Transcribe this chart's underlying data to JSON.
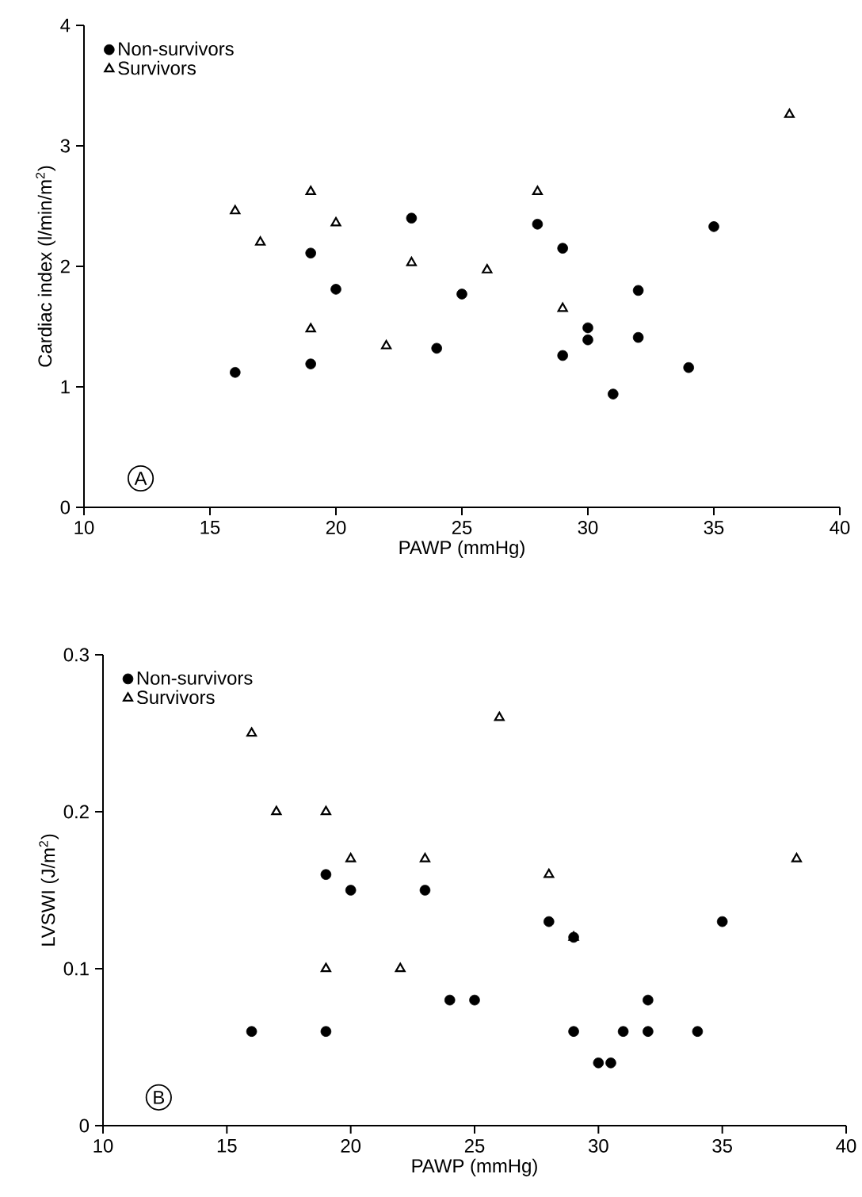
{
  "chart_data": [
    {
      "type": "scatter",
      "xlabel": "PAWP (mmHg)",
      "ylabel": "Cardiac index (l/min/m$^{2}$)",
      "xlim": [
        10,
        40
      ],
      "ylim": [
        0,
        4
      ],
      "xticks": [
        10,
        15,
        20,
        25,
        30,
        35,
        40
      ],
      "yticks": [
        0,
        1,
        2,
        3,
        4
      ],
      "legend": "top left",
      "annotations": [
        "A"
      ],
      "series": [
        {
          "name": "Non-survivors",
          "color": "#000000",
          "marker": "circle",
          "x": [
            16,
            19,
            19,
            20,
            23,
            24,
            25,
            28,
            29,
            29,
            30,
            30,
            31,
            32,
            32,
            34,
            35
          ],
          "values": [
            1.12,
            1.19,
            2.11,
            1.81,
            2.4,
            1.32,
            1.77,
            2.35,
            2.15,
            1.26,
            1.49,
            1.39,
            0.94,
            1.8,
            1.41,
            1.16,
            2.33
          ]
        },
        {
          "name": "Survivors",
          "color": "#000000",
          "marker": "triangle",
          "x": [
            16,
            17,
            19,
            19,
            20,
            22,
            23,
            26,
            28,
            29,
            38
          ],
          "values": [
            2.46,
            2.2,
            2.62,
            1.48,
            2.36,
            1.34,
            2.03,
            1.97,
            2.62,
            1.65,
            3.26
          ]
        }
      ]
    },
    {
      "type": "scatter",
      "xlabel": "PAWP (mmHg)",
      "ylabel": "LVSWI (J/m$^{2}$)",
      "xlim": [
        10,
        40
      ],
      "ylim": [
        0,
        0.3
      ],
      "xticks": [
        10,
        15,
        20,
        25,
        30,
        35,
        40
      ],
      "yticks": [
        0,
        0.1,
        0.2,
        0.3
      ],
      "legend": "top left",
      "annotations": [
        "B"
      ],
      "series": [
        {
          "name": "Non-survivors",
          "color": "#000000",
          "marker": "circle",
          "x": [
            16,
            19,
            19,
            20,
            23,
            24,
            25,
            28,
            29,
            29,
            30,
            30.5,
            31,
            32,
            32,
            34,
            35
          ],
          "values": [
            0.06,
            0.16,
            0.06,
            0.15,
            0.15,
            0.08,
            0.08,
            0.13,
            0.12,
            0.06,
            0.04,
            0.04,
            0.06,
            0.08,
            0.06,
            0.06,
            0.13
          ]
        },
        {
          "name": "Survivors",
          "color": "#000000",
          "marker": "triangle",
          "x": [
            16,
            17,
            19,
            19,
            20,
            22,
            23,
            26,
            28,
            29,
            38
          ],
          "values": [
            0.25,
            0.2,
            0.2,
            0.1,
            0.17,
            0.1,
            0.17,
            0.26,
            0.16,
            0.12,
            0.17
          ]
        }
      ]
    }
  ]
}
